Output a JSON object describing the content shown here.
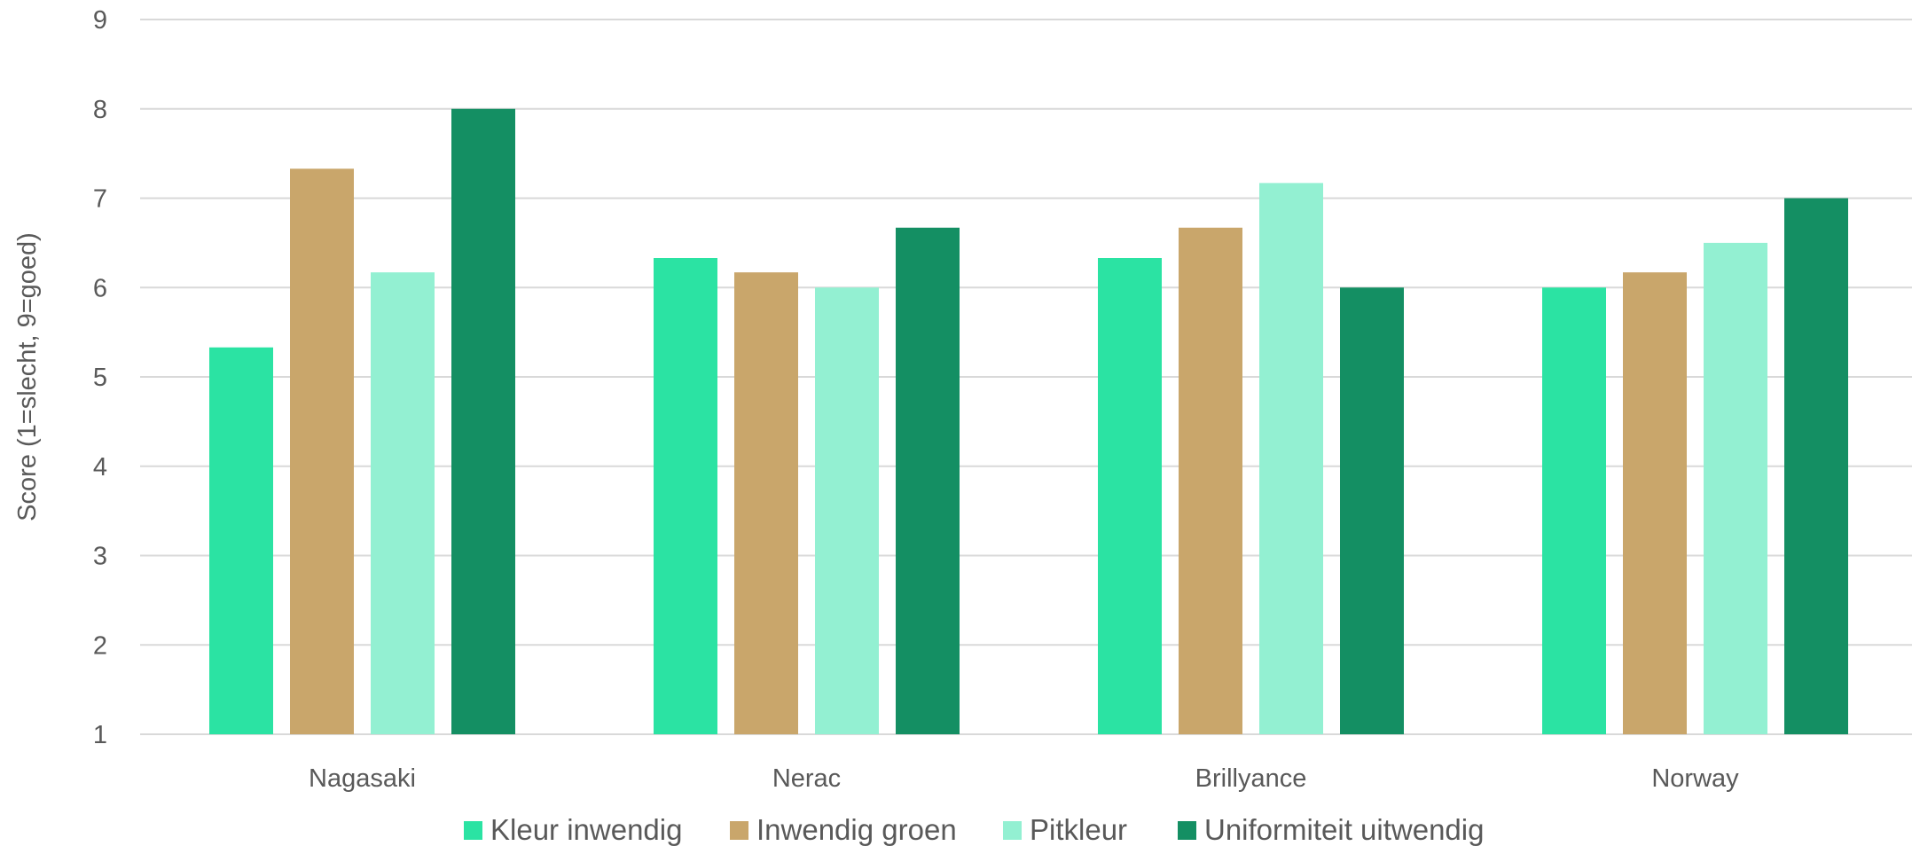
{
  "chart_data": {
    "type": "bar",
    "categories": [
      "Nagasaki",
      "Nerac",
      "Brillyance",
      "Norway"
    ],
    "series": [
      {
        "name": "Kleur inwendig",
        "color": "#2BE3A3",
        "values": [
          5.33,
          6.33,
          6.33,
          6.0
        ]
      },
      {
        "name": "Inwendig groen",
        "color": "#C9A66B",
        "values": [
          7.33,
          6.17,
          6.67,
          6.17
        ]
      },
      {
        "name": "Pitkleur",
        "color": "#93F0D2",
        "values": [
          6.17,
          6.0,
          7.17,
          6.5
        ]
      },
      {
        "name": "Uniformiteit uitwendig",
        "color": "#148F63",
        "values": [
          8.0,
          6.67,
          6.0,
          7.0
        ]
      }
    ],
    "ylabel": "Score (1=slecht, 9=goed)",
    "xlabel": "",
    "ylim": [
      1,
      9
    ],
    "yticks": [
      "1",
      "2",
      "3",
      "4",
      "5",
      "6",
      "7",
      "8",
      "9"
    ],
    "grid": true,
    "legend_position": "bottom"
  }
}
